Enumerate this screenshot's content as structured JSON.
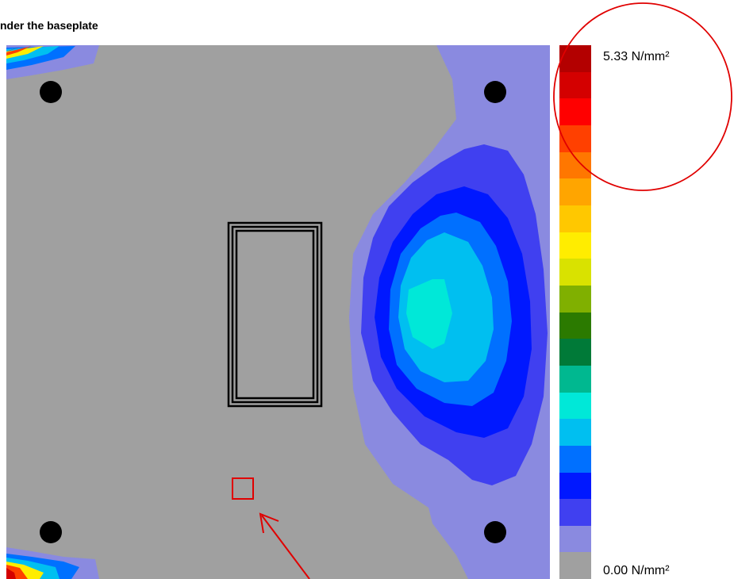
{
  "title": "nder the baseplate",
  "legend": {
    "max_label": "5.33 N/mm²",
    "min_label": "0.00 N/mm²",
    "colors": [
      "#b30000",
      "#d40000",
      "#ff0000",
      "#ff4000",
      "#ff7700",
      "#ffa500",
      "#ffc800",
      "#ffed00",
      "#d9e200",
      "#80b000",
      "#2b7a00",
      "#007a38",
      "#00b890",
      "#00e8d8",
      "#00bff0",
      "#0070ff",
      "#0018ff",
      "#4040f0",
      "#8a8ae0",
      "#a0a0a0"
    ]
  },
  "contour_colors": {
    "background": "#a0a0a0",
    "level_1": "#8a8ae0",
    "level_2": "#4040f0",
    "level_3": "#0018ff",
    "level_4": "#0070ff",
    "level_5": "#00bff0",
    "level_6": "#00e8d8"
  },
  "accent": "#e00000"
}
